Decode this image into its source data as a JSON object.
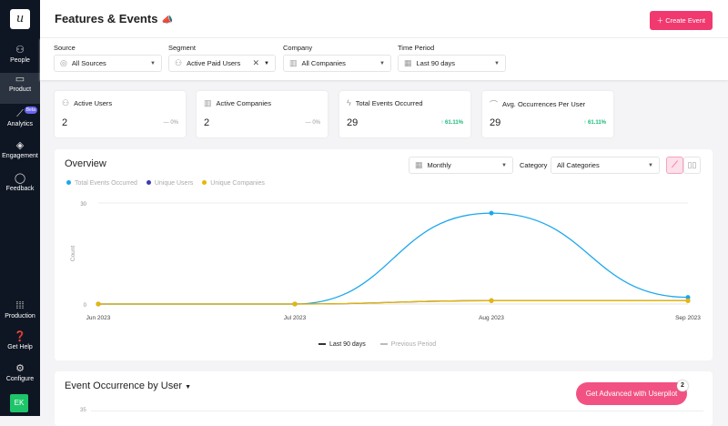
{
  "sidebar": {
    "logo": "u",
    "items": [
      {
        "label": "People",
        "icon": "people-icon"
      },
      {
        "label": "Product",
        "icon": "product-icon"
      },
      {
        "label": "Analytics",
        "icon": "analytics-icon",
        "badge": "Beta"
      },
      {
        "label": "Engagement",
        "icon": "engagement-icon"
      },
      {
        "label": "Feedback",
        "icon": "feedback-icon"
      }
    ],
    "bottom": [
      {
        "label": "Production"
      },
      {
        "label": "Get Help"
      },
      {
        "label": "Configure"
      }
    ],
    "avatar": "EK"
  },
  "header": {
    "title": "Features & Events",
    "create_label": "Create Event"
  },
  "filters": {
    "source": {
      "label": "Source",
      "value": "All Sources"
    },
    "segment": {
      "label": "Segment",
      "value": "Active Paid Users"
    },
    "company": {
      "label": "Company",
      "value": "All Companies"
    },
    "period": {
      "label": "Time Period",
      "value": "Last 90 days"
    }
  },
  "stats": [
    {
      "label": "Active Users",
      "value": "2",
      "delta": "— 0%"
    },
    {
      "label": "Active Companies",
      "value": "2",
      "delta": "— 0%"
    },
    {
      "label": "Total Events Occurred",
      "value": "29",
      "delta": "↑ 61.11%"
    },
    {
      "label": "Avg. Occurrences Per User",
      "value": "29",
      "delta": "↑ 61.11%"
    }
  ],
  "overview": {
    "title": "Overview",
    "interval": "Monthly",
    "category_label": "Category",
    "category": "All Categories",
    "legend_current": "Last 90 days",
    "legend_previous": "Previous Period"
  },
  "chart_data": {
    "type": "line",
    "categories": [
      "Jun 2023",
      "Jul 2023",
      "Aug 2023",
      "Sep 2023"
    ],
    "ylabel": "Count",
    "yticks": [
      "0",
      "30"
    ],
    "ylim": [
      0,
      30
    ],
    "series": [
      {
        "name": "Total Events Occurred",
        "color": "#1aa7ec",
        "values": [
          0,
          0,
          27,
          2
        ]
      },
      {
        "name": "Unique Users",
        "color": "#3b3bb3",
        "values": [
          0,
          0,
          1,
          1
        ]
      },
      {
        "name": "Unique Companies",
        "color": "#e6b800",
        "values": [
          0,
          0,
          1,
          1
        ]
      }
    ]
  },
  "section2": {
    "title": "Event Occurrence by User",
    "ytick": "35"
  },
  "cta": {
    "label": "Get Advanced with Userpilot",
    "count": "2"
  }
}
